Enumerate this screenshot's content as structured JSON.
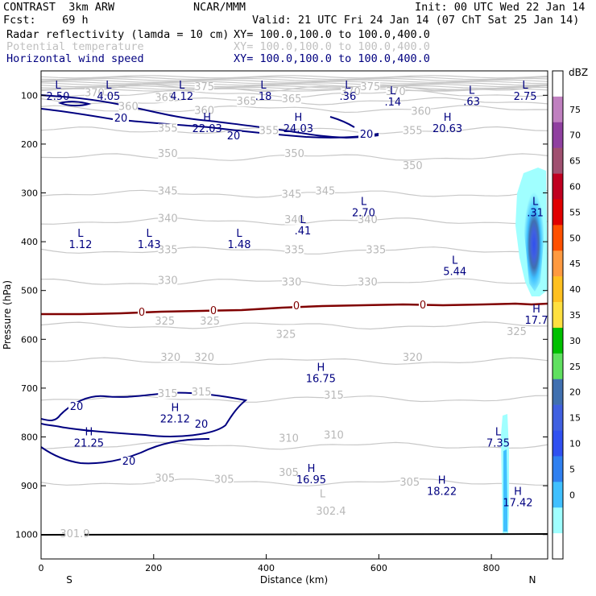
{
  "chart_data": {
    "type": "cross-section",
    "title_left": "CONTRAST  3km ARW",
    "title_center": "NCAR/MMM",
    "title_right": "Init: 00 UTC Wed 22 Jan 14",
    "forecast": "Fcst:    69 h",
    "valid": "Valid: 21 UTC Fri 24 Jan 14 (07 ChT Sat 25 Jan 14)",
    "fields": [
      {
        "name": "Radar reflectivity (lamda = 10 cm)",
        "xy": "XY= 100.0,100.0 to 100.0,400.0",
        "color": "#000000"
      },
      {
        "name": "Potential temperature",
        "xy": "XY= 100.0,100.0 to 100.0,400.0",
        "color": "#c0c0c0"
      },
      {
        "name": "Horizontal wind speed",
        "xy": "XY= 100.0,100.0 to 100.0,400.0",
        "color": "#000080"
      }
    ],
    "xlabel": "Distance (km)",
    "ylabel": "Pressure (hPa)",
    "xlim": [
      0,
      900
    ],
    "ylim": [
      1050,
      50
    ],
    "x_ticks": [
      "0",
      "200",
      "400",
      "600",
      "800"
    ],
    "x_tick_values": [
      0,
      200,
      400,
      600,
      800
    ],
    "y_ticks": [
      "100",
      "200",
      "300",
      "400",
      "500",
      "600",
      "700",
      "800",
      "900",
      "1000"
    ],
    "y_tick_values": [
      100,
      200,
      300,
      400,
      500,
      600,
      700,
      800,
      900,
      1000
    ],
    "x_end_labels": {
      "left": "S",
      "right": "N"
    },
    "colorbar": {
      "unit": "dBZ",
      "levels": [
        "75",
        "70",
        "65",
        "60",
        "55",
        "50",
        "45",
        "40",
        "35",
        "30",
        "25",
        "20",
        "15",
        "10",
        "5",
        "0"
      ],
      "colors": [
        "#ffffff",
        "#c080c0",
        "#9040a0",
        "#a05070",
        "#c00020",
        "#e00000",
        "#ff5000",
        "#ff9a40",
        "#ffc020",
        "#ffe040",
        "#00c000",
        "#60e060",
        "#4070b0",
        "#4060e0",
        "#3050f0",
        "#3080f0",
        "#40c0ff",
        "#a0ffff",
        "#ffffff"
      ]
    },
    "theta_contours": [
      {
        "label": "305",
        "p": 893
      },
      {
        "label": "310",
        "p": 818
      },
      {
        "label": "315",
        "p": 722
      },
      {
        "label": "320",
        "p": 645
      },
      {
        "label": "325",
        "p": 572
      },
      {
        "label": "330",
        "p": 483
      },
      {
        "label": "335",
        "p": 418
      },
      {
        "label": "340",
        "p": 358
      },
      {
        "label": "345",
        "p": 302
      },
      {
        "label": "350",
        "p": 227
      },
      {
        "label": "355",
        "p": 172
      },
      {
        "label": "360",
        "p": 128
      },
      {
        "label": "365",
        "p": 112
      },
      {
        "label": "370",
        "p": 97
      },
      {
        "label": "375",
        "p": 85
      }
    ],
    "theta_labels": [
      {
        "text": "305",
        "x": 220,
        "p": 890
      },
      {
        "text": "305",
        "x": 325,
        "p": 892
      },
      {
        "text": "305",
        "x": 440,
        "p": 878
      },
      {
        "text": "305",
        "x": 655,
        "p": 898
      },
      {
        "text": "310",
        "x": 440,
        "p": 808
      },
      {
        "text": "310",
        "x": 520,
        "p": 802
      },
      {
        "text": "315",
        "x": 225,
        "p": 717
      },
      {
        "text": "315",
        "x": 285,
        "p": 713
      },
      {
        "text": "315",
        "x": 520,
        "p": 720
      },
      {
        "text": "320",
        "x": 230,
        "p": 642
      },
      {
        "text": "320",
        "x": 290,
        "p": 642
      },
      {
        "text": "320",
        "x": 660,
        "p": 642
      },
      {
        "text": "325",
        "x": 220,
        "p": 568
      },
      {
        "text": "325",
        "x": 300,
        "p": 568
      },
      {
        "text": "325",
        "x": 435,
        "p": 595
      },
      {
        "text": "325",
        "x": 845,
        "p": 590
      },
      {
        "text": "330",
        "x": 225,
        "p": 485
      },
      {
        "text": "330",
        "x": 445,
        "p": 488
      },
      {
        "text": "330",
        "x": 580,
        "p": 488
      },
      {
        "text": "335",
        "x": 225,
        "p": 422
      },
      {
        "text": "335",
        "x": 450,
        "p": 422
      },
      {
        "text": "335",
        "x": 595,
        "p": 422
      },
      {
        "text": "340",
        "x": 225,
        "p": 358
      },
      {
        "text": "340",
        "x": 450,
        "p": 360
      },
      {
        "text": "340",
        "x": 580,
        "p": 360
      },
      {
        "text": "345",
        "x": 225,
        "p": 302
      },
      {
        "text": "345",
        "x": 445,
        "p": 308
      },
      {
        "text": "345",
        "x": 505,
        "p": 302
      },
      {
        "text": "350",
        "x": 225,
        "p": 225
      },
      {
        "text": "350",
        "x": 450,
        "p": 225
      },
      {
        "text": "350",
        "x": 660,
        "p": 250
      },
      {
        "text": "355",
        "x": 225,
        "p": 173
      },
      {
        "text": "355",
        "x": 405,
        "p": 178
      },
      {
        "text": "355",
        "x": 660,
        "p": 178
      },
      {
        "text": "360",
        "x": 155,
        "p": 128
      },
      {
        "text": "360",
        "x": 290,
        "p": 137
      },
      {
        "text": "360",
        "x": 675,
        "p": 138
      },
      {
        "text": "365",
        "x": 220,
        "p": 110
      },
      {
        "text": "365",
        "x": 365,
        "p": 118
      },
      {
        "text": "365",
        "x": 445,
        "p": 113
      },
      {
        "text": "370",
        "x": 95,
        "p": 100
      },
      {
        "text": "370",
        "x": 550,
        "p": 98
      },
      {
        "text": "370",
        "x": 630,
        "p": 98
      },
      {
        "text": "375",
        "x": 290,
        "p": 88
      },
      {
        "text": "375",
        "x": 585,
        "p": 88
      },
      {
        "text": "302.4",
        "x": 515,
        "p": 958
      },
      {
        "text": "L",
        "x": 500,
        "p": 922
      },
      {
        "text": "301.9",
        "x": 60,
        "p": 1004
      }
    ],
    "wind_contour_value": "20",
    "wind_extrema": [
      {
        "type": "L",
        "value": "2.50",
        "x": 30,
        "p": 86
      },
      {
        "type": "L",
        "value": "4.05",
        "x": 120,
        "p": 86
      },
      {
        "type": "L",
        "value": "4.12",
        "x": 250,
        "p": 86
      },
      {
        "type": "L",
        "value": ".18",
        "x": 395,
        "p": 86
      },
      {
        "type": "L",
        "value": ".36",
        "x": 545,
        "p": 86
      },
      {
        "type": "L",
        "value": ".14",
        "x": 625,
        "p": 98
      },
      {
        "type": "L",
        "value": ".63",
        "x": 765,
        "p": 97
      },
      {
        "type": "L",
        "value": "2.75",
        "x": 860,
        "p": 86
      },
      {
        "type": "H",
        "value": "22.03",
        "x": 295,
        "p": 152
      },
      {
        "type": "H",
        "value": "24.03",
        "x": 457,
        "p": 152
      },
      {
        "type": "H",
        "value": "20.63",
        "x": 722,
        "p": 152
      },
      {
        "type": "L",
        "value": "2.70",
        "x": 573,
        "p": 325
      },
      {
        "type": "L",
        "value": ".41",
        "x": 465,
        "p": 362
      },
      {
        "type": "L",
        "value": ".31",
        "x": 878,
        "p": 325
      },
      {
        "type": "L",
        "value": "1.12",
        "x": 70,
        "p": 390
      },
      {
        "type": "L",
        "value": "1.43",
        "x": 192,
        "p": 390
      },
      {
        "type": "L",
        "value": "1.48",
        "x": 352,
        "p": 390
      },
      {
        "type": "L",
        "value": "5.44",
        "x": 735,
        "p": 445
      },
      {
        "type": "H",
        "value": "17.7",
        "x": 880,
        "p": 545
      },
      {
        "type": "H",
        "value": "16.75",
        "x": 497,
        "p": 665
      },
      {
        "type": "H",
        "value": "22.12",
        "x": 238,
        "p": 747
      },
      {
        "type": "H",
        "value": "21.25",
        "x": 85,
        "p": 797
      },
      {
        "type": "L",
        "value": "7.35",
        "x": 812,
        "p": 797
      },
      {
        "type": "H",
        "value": "16.95",
        "x": 480,
        "p": 872
      },
      {
        "type": "H",
        "value": "18.22",
        "x": 712,
        "p": 896
      },
      {
        "type": "H",
        "value": "17.42",
        "x": 847,
        "p": 919
      }
    ],
    "zero_line_labels": [
      "0",
      "0",
      "0",
      "0"
    ]
  }
}
